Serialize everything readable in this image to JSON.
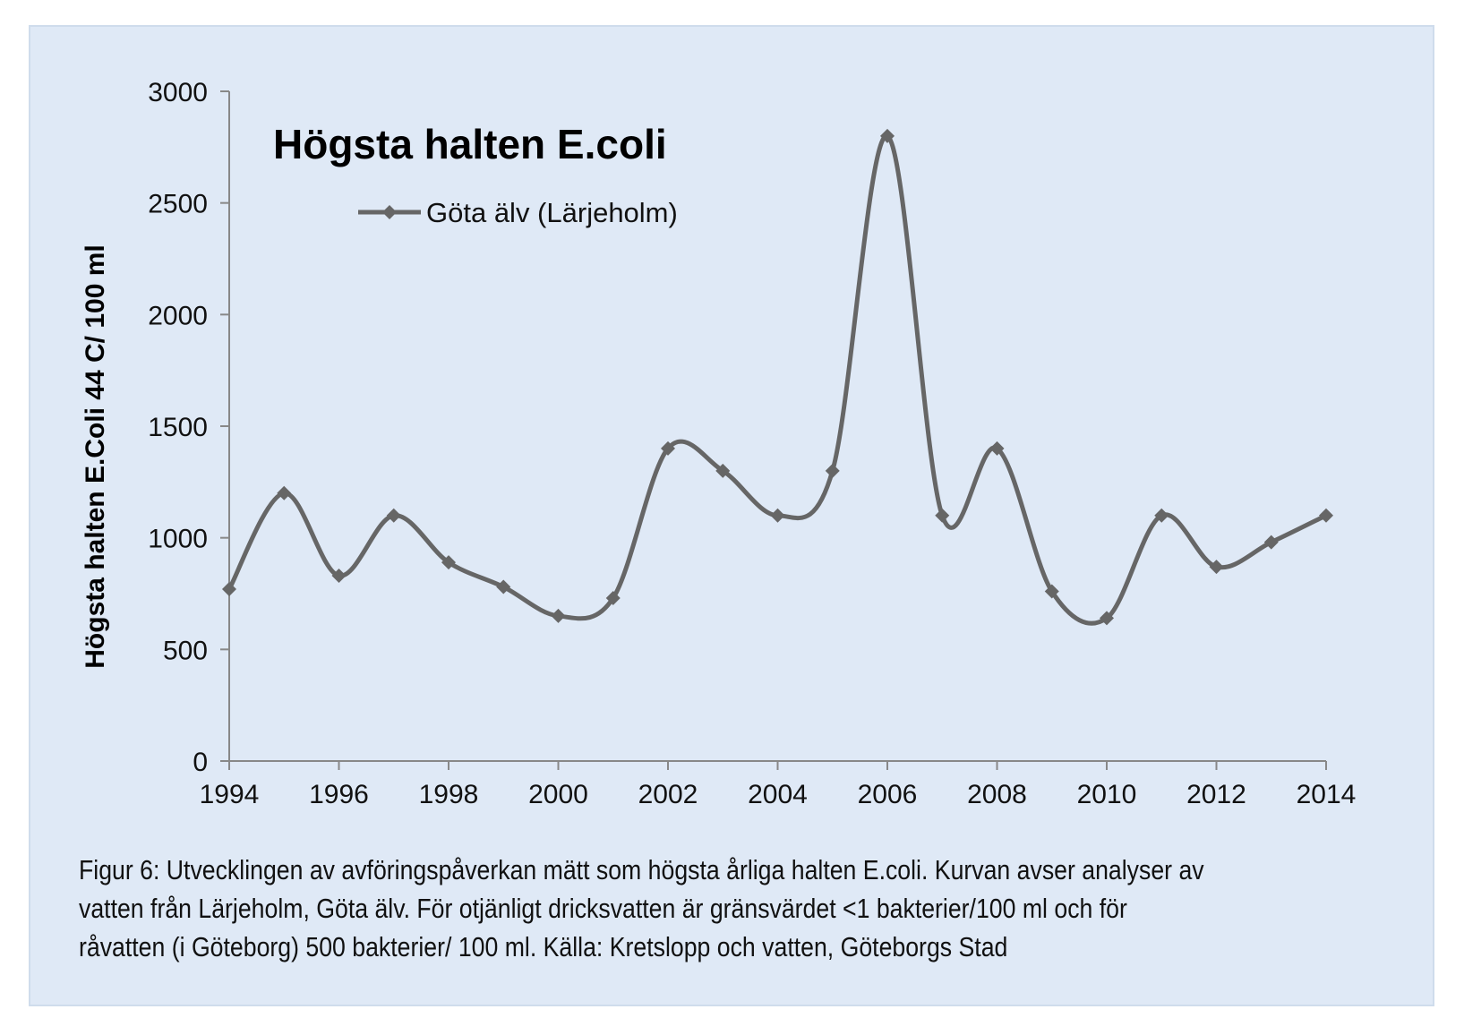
{
  "chart_data": {
    "type": "line",
    "title": "Högsta halten E.coli",
    "ylabel": "Högsta halten E.Coli 44 C/ 100 ml",
    "xlabel": "",
    "ylim": [
      0,
      3000
    ],
    "yticks": [
      0,
      500,
      1000,
      1500,
      2000,
      2500,
      3000
    ],
    "xlim": [
      1994,
      2014
    ],
    "xticks": [
      1994,
      1996,
      1998,
      2000,
      2002,
      2004,
      2006,
      2008,
      2010,
      2012,
      2014
    ],
    "legend_position": "top-center",
    "series": [
      {
        "name": "Göta älv (Lärjeholm)",
        "color": "#666666",
        "x": [
          1994,
          1995,
          1996,
          1997,
          1998,
          1999,
          2000,
          2001,
          2002,
          2003,
          2004,
          2005,
          2006,
          2007,
          2008,
          2009,
          2010,
          2011,
          2012,
          2013,
          2014
        ],
        "values": [
          770,
          1200,
          830,
          1100,
          890,
          780,
          650,
          730,
          1400,
          1300,
          1100,
          1300,
          2800,
          1100,
          1400,
          760,
          640,
          1100,
          870,
          980,
          1100
        ]
      }
    ]
  },
  "caption": "Figur 6: Utvecklingen av avföringspåverkan mätt som högsta årliga halten E.coli. Kurvan avser analyser av vatten från Lärjeholm, Göta älv. För otjänligt dricksvatten är gränsvärdet <1 bakterier/100 ml och för råvatten (i Göteborg) 500 bakterier/ 100 ml. Källa: Kretslopp och vatten, Göteborgs Stad",
  "colors": {
    "background": "#dfe9f6",
    "axis": "#888888",
    "line": "#666666"
  }
}
